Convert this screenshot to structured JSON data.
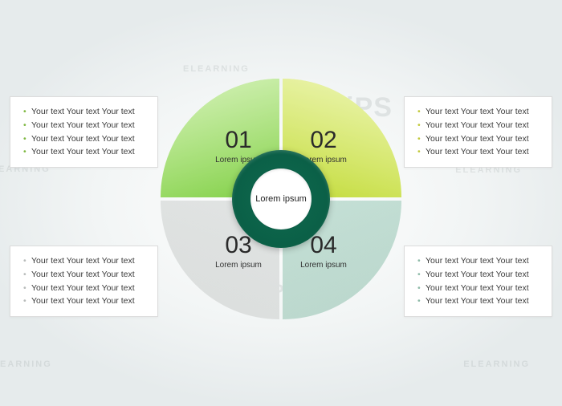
{
  "background": {
    "watermarks": [
      "ELEARNING",
      "CHiPS"
    ],
    "bg_color": "#eef2f2"
  },
  "chart": {
    "type": "donut-4-segment",
    "center_label": "Lorem ipsum",
    "center_ring_color": "#0d6b50",
    "center_fill_color": "#ffffff",
    "segments": [
      {
        "number": "01",
        "caption": "Lorem ipsum",
        "color_top": "#a4e268",
        "color_bottom": "#6bc23a"
      },
      {
        "number": "02",
        "caption": "Lorem ipsum",
        "color_top": "#d7ea5c",
        "color_bottom": "#b3cf2d"
      },
      {
        "number": "03",
        "caption": "Lorem ipsum",
        "color_top": "#e9eceb",
        "color_bottom": "#c7cccb"
      },
      {
        "number": "04",
        "caption": "Lorem ipsum",
        "color_top": "#c6e4d9",
        "color_bottom": "#9cc9b8"
      }
    ],
    "number_fontsize": 30,
    "caption_fontsize": 10
  },
  "textboxes": {
    "bullet_colors": {
      "tl": "#7fb842",
      "tr": "#c2c93b",
      "bl": "#b8bcbb",
      "br": "#8fbba9"
    },
    "items": {
      "tl": [
        "Your text Your text Your text",
        "Your text Your text Your text",
        "Your text Your text Your text",
        "Your text Your text Your text"
      ],
      "tr": [
        "Your text Your text Your text",
        "Your text Your text Your text",
        "Your text Your text Your text",
        "Your text Your text Your text"
      ],
      "bl": [
        "Your text Your text Your text",
        "Your text Your text Your text",
        "Your text Your text Your text",
        "Your text Your text Your text"
      ],
      "br": [
        "Your text Your text Your text",
        "Your text Your text Your text",
        "Your text Your text Your text",
        "Your text Your text Your text"
      ]
    }
  }
}
